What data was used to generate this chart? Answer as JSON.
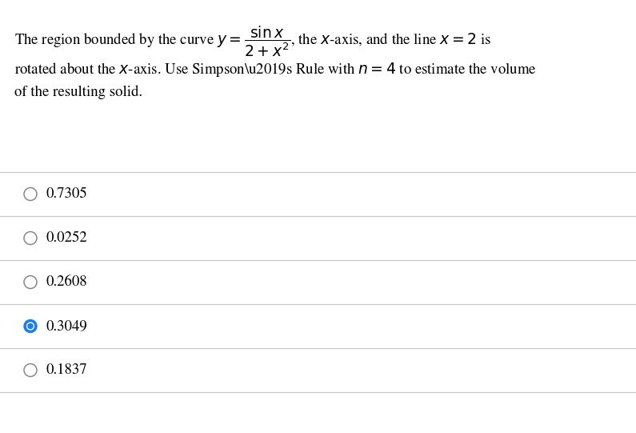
{
  "background_color": "#ffffff",
  "text_color": "#000000",
  "selected_color": "#1a7fe8",
  "line_color": "#c8c8c8",
  "font_size_question": 13.5,
  "font_size_option": 13.5,
  "options": [
    {
      "label": "0.7305",
      "selected": false
    },
    {
      "label": "0.0252",
      "selected": false
    },
    {
      "label": "0.2608",
      "selected": false
    },
    {
      "label": "0.3049",
      "selected": true
    },
    {
      "label": "0.1837",
      "selected": false
    }
  ]
}
